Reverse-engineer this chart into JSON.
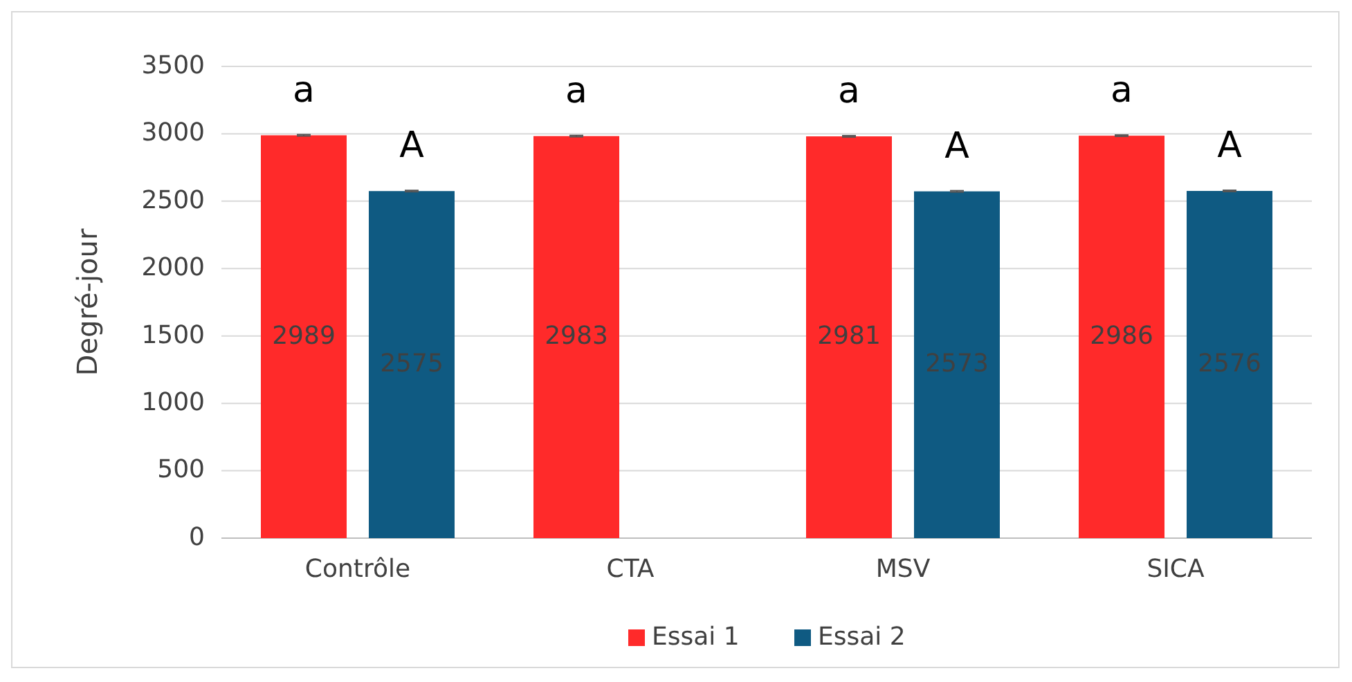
{
  "chart_data": {
    "type": "bar",
    "ylabel": "Degré-jour",
    "categories": [
      "Contrôle",
      "CTA",
      "MSV",
      "SICA"
    ],
    "series": [
      {
        "name": "Essai 1",
        "color": "#ff2a2a",
        "values": [
          2989,
          2983,
          2981,
          2986
        ],
        "errors": [
          5,
          5,
          5,
          5
        ]
      },
      {
        "name": "Essai 2",
        "color": "#0f5a82",
        "values": [
          2575,
          null,
          2573,
          2576
        ],
        "errors": [
          5,
          null,
          5,
          5
        ]
      }
    ],
    "ylim": [
      0,
      3500
    ],
    "yticks": [
      0,
      500,
      1000,
      1500,
      2000,
      2500,
      3000,
      3500
    ],
    "grid": "y",
    "legend": "bottom",
    "data_labels": true,
    "annotations": [
      "a",
      "A",
      "a",
      "a",
      "A",
      "a",
      "A"
    ]
  }
}
